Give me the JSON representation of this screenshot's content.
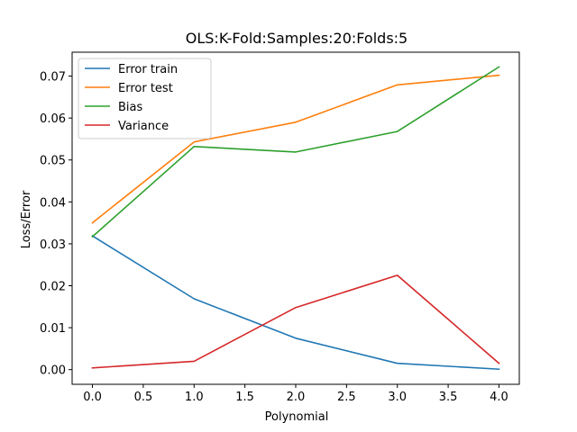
{
  "chart_data": {
    "type": "line",
    "title": "OLS:K-Fold:Samples:20:Folds:5",
    "xlabel": "Polynomial",
    "ylabel": "Loss/Error",
    "xlim": [
      -0.2,
      4.2
    ],
    "ylim": [
      -0.0035,
      0.0757
    ],
    "x_ticks": [
      0.0,
      0.5,
      1.0,
      1.5,
      2.0,
      2.5,
      3.0,
      3.5,
      4.0
    ],
    "x_tick_labels": [
      "0.0",
      "0.5",
      "1.0",
      "1.5",
      "2.0",
      "2.5",
      "3.0",
      "3.5",
      "4.0"
    ],
    "y_ticks": [
      0.0,
      0.01,
      0.02,
      0.03,
      0.04,
      0.05,
      0.06,
      0.07
    ],
    "y_tick_labels": [
      "0.00",
      "0.01",
      "0.02",
      "0.03",
      "0.04",
      "0.05",
      "0.06",
      "0.07"
    ],
    "grid": false,
    "legend_position": "upper-left",
    "x": [
      0,
      1,
      2,
      3,
      4
    ],
    "series": [
      {
        "name": "Error train",
        "color": "#1f77b4",
        "values": [
          0.0319,
          0.0169,
          0.0075,
          0.0015,
          0.0001
        ]
      },
      {
        "name": "Error test",
        "color": "#ff7f0e",
        "values": [
          0.035,
          0.0543,
          0.059,
          0.0679,
          0.0702
        ]
      },
      {
        "name": "Bias",
        "color": "#2ca02c",
        "values": [
          0.0317,
          0.0532,
          0.0519,
          0.0568,
          0.0722
        ]
      },
      {
        "name": "Variance",
        "color": "#d62728",
        "values": [
          0.0004,
          0.002,
          0.0148,
          0.0225,
          0.0015
        ]
      }
    ]
  }
}
